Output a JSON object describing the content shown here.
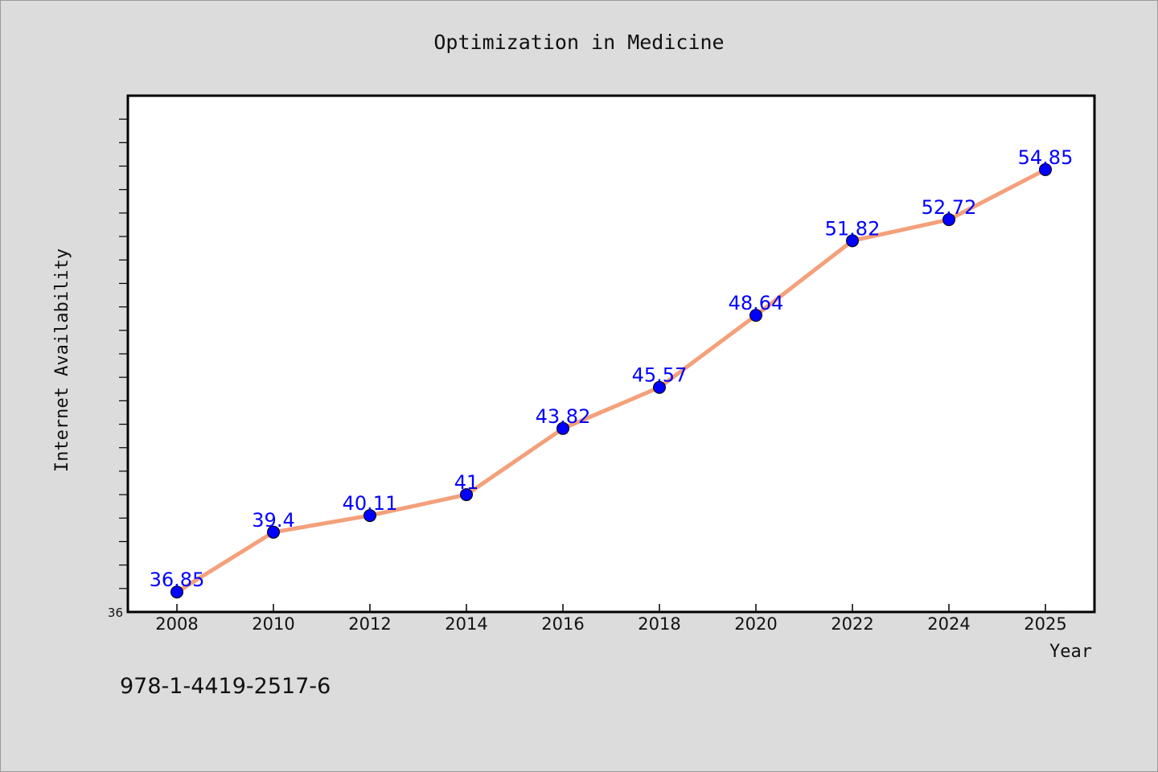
{
  "chart_data": {
    "type": "line",
    "title": "Optimization in Medicine",
    "xlabel": "Year",
    "ylabel": "Internet Availability",
    "x": [
      "2008",
      "2010",
      "2012",
      "2014",
      "2016",
      "2018",
      "2020",
      "2022",
      "2024",
      "2025"
    ],
    "series": [
      {
        "values": [
          36.85,
          39.4,
          40.11,
          41,
          43.82,
          45.57,
          48.64,
          51.82,
          52.72,
          54.85
        ],
        "labels": [
          "36.85",
          "39.4",
          "40.11",
          "41",
          "43.82",
          "45.57",
          "48.64",
          "51.82",
          "52.72",
          "54.85"
        ]
      }
    ],
    "ylim": [
      36,
      58
    ],
    "y_tick_labels": [
      "36"
    ],
    "grid": false,
    "legend": "none",
    "colors": {
      "line": "#f4a07a",
      "marker": "#0000ff",
      "data_label": "#0000ff",
      "background": "#dcdcdc",
      "plot_background": "#ffffff"
    }
  },
  "footer": {
    "isbn": "978-1-4419-2517-6"
  }
}
